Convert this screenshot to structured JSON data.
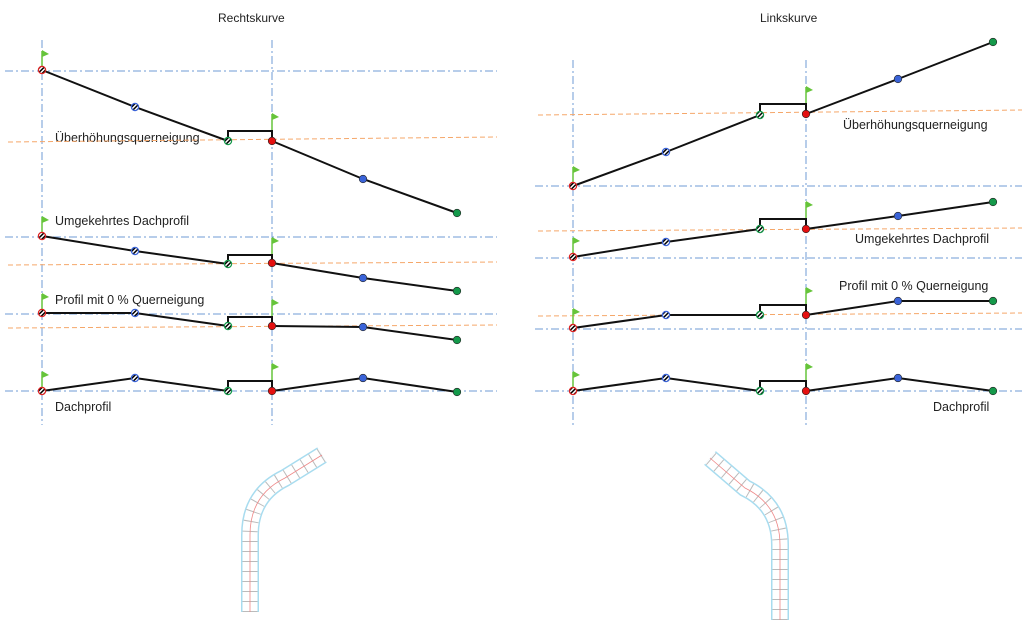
{
  "left": {
    "title": "Rechtskurve",
    "labels": [
      "Überhöhungsquerneigung",
      "Umgekehrtes Dachprofil",
      "Profil mit 0 % Querneigung",
      "Dachprofil"
    ]
  },
  "right": {
    "title": "Linkskurve",
    "labels": [
      "Überhöhungsquerneigung",
      "Umgekehrtes Dachprofil",
      "Profil mit 0 % Querneigung",
      "Dachprofil"
    ]
  },
  "colors": {
    "axis": "#6f9bd6",
    "reference": "#f5a76a",
    "flag": "#66c43a",
    "start": "#d22",
    "blue": "#3a63d8",
    "green": "#14994a",
    "red": "#e41010"
  }
}
